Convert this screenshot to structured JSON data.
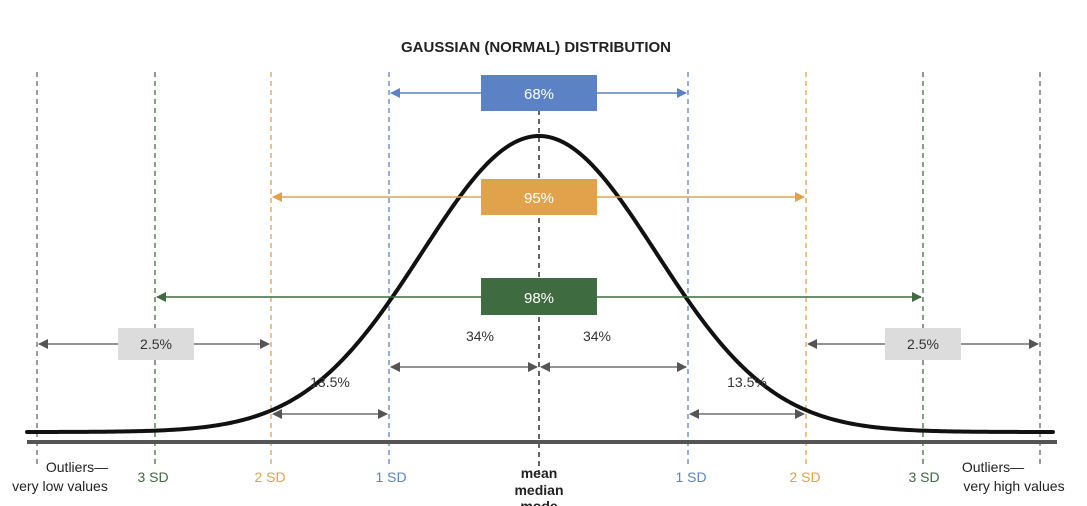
{
  "title": "GAUSSIAN (NORMAL) DISTRIBUTION",
  "colors": {
    "blue": "#5b82c4",
    "orange": "#e0a24a",
    "green": "#3e6b3f",
    "gray_box": "#dcdcdc",
    "curve": "#111111",
    "arrow_gray": "#555555"
  },
  "bands": [
    {
      "label": "68%",
      "color": "#5b82c4"
    },
    {
      "label": "95%",
      "color": "#e0a24a"
    },
    {
      "label": "98%",
      "color": "#3e6b3f"
    }
  ],
  "segments": {
    "left_tail": "2.5%",
    "right_tail": "2.5%",
    "left_34": "34%",
    "right_34": "34%",
    "left_13": "13.5%",
    "right_13": "13.5%"
  },
  "axis": {
    "left_outliers_line1": "Outliers—",
    "left_outliers_line2": "very low values",
    "right_outliers_line1": "Outliers—",
    "right_outliers_line2": "very high values",
    "left_3sd": "3 SD",
    "left_2sd": "2 SD",
    "left_1sd": "1 SD",
    "center_line1": "mean",
    "center_line2": "median",
    "center_line3": "mode",
    "right_1sd": "1 SD",
    "right_2sd": "2 SD",
    "right_3sd": "3 SD"
  }
}
